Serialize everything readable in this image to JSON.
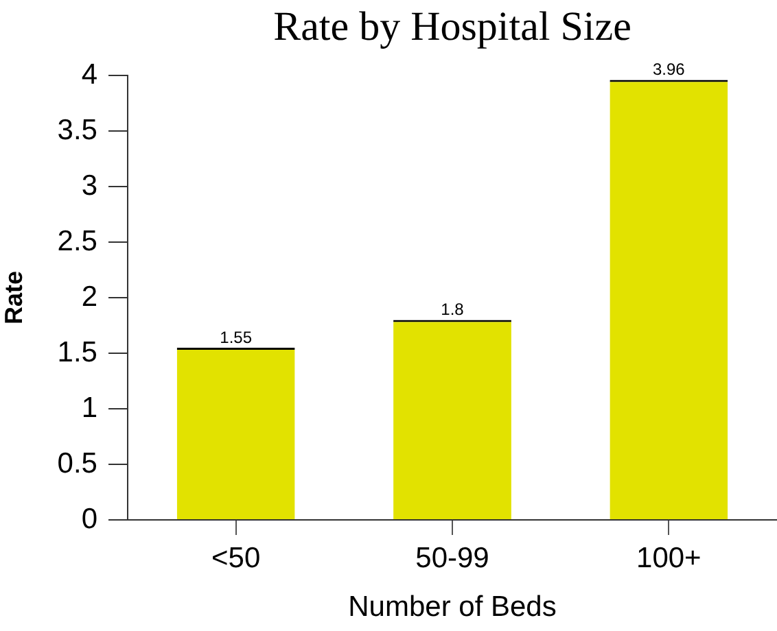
{
  "chart_data": {
    "type": "bar",
    "title": "Rate by Hospital Size",
    "xlabel": "Number of Beds",
    "ylabel": "Rate",
    "categories": [
      "<50",
      "50-99",
      "100+"
    ],
    "values": [
      1.55,
      1.8,
      3.96
    ],
    "color": "#e2e200",
    "ylim": [
      0,
      4
    ],
    "yticks": [
      0,
      0.5,
      1,
      1.5,
      2,
      2.5,
      3,
      3.5,
      4
    ],
    "data_labels": true
  }
}
